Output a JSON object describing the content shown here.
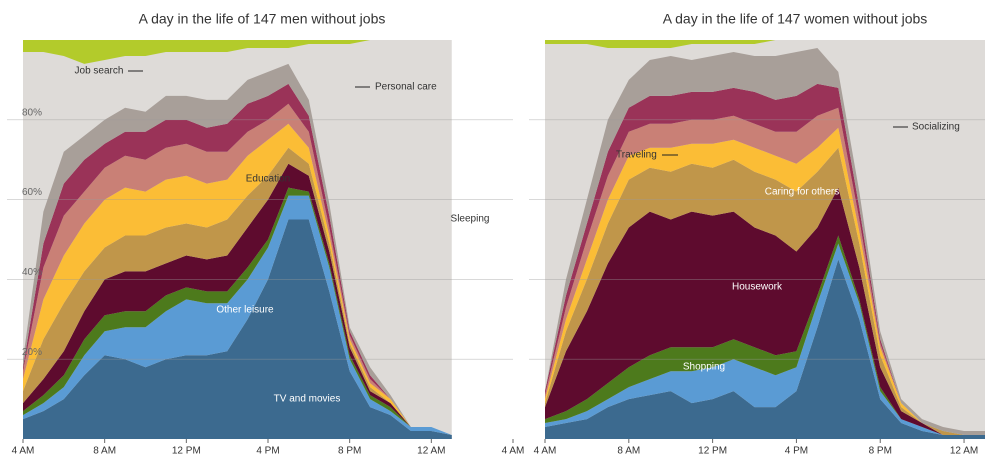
{
  "chart_data": [
    {
      "type": "area",
      "title": "A day in the life of 147 men without jobs",
      "x": [
        4,
        5,
        6,
        7,
        8,
        9,
        10,
        11,
        12,
        13,
        14,
        15,
        16,
        17,
        18,
        19,
        20,
        21,
        22,
        23,
        24,
        25
      ],
      "xlim": [
        4,
        28
      ],
      "xticks": [
        {
          "value": 4,
          "label": "4 AM"
        },
        {
          "value": 8,
          "label": "8 AM"
        },
        {
          "value": 12,
          "label": "12 PM"
        },
        {
          "value": 16,
          "label": "4 PM"
        },
        {
          "value": 20,
          "label": "8 PM"
        },
        {
          "value": 24,
          "label": "12 AM"
        },
        {
          "value": 28,
          "label": "4 AM"
        }
      ],
      "ylim": [
        0,
        100
      ],
      "yticks": [
        {
          "value": 20,
          "label": "20%"
        },
        {
          "value": 40,
          "label": "40%"
        },
        {
          "value": 60,
          "label": "60%"
        },
        {
          "value": 80,
          "label": "80%"
        }
      ],
      "show_ytick_labels": true,
      "background": "#dedbd8",
      "annotations": [
        {
          "text": "Sleeping"
        }
      ],
      "series": [
        {
          "name": "TV and movies",
          "color": "#3c6a8f",
          "values": [
            5,
            7,
            10,
            16,
            21,
            20,
            18,
            20,
            21,
            21,
            22,
            30,
            40,
            55,
            55,
            37,
            17,
            8,
            6,
            2,
            2,
            1
          ]
        },
        {
          "name": "Other leisure",
          "color": "#5a9bd4",
          "values": [
            1,
            2,
            3,
            5,
            6,
            8,
            10,
            12,
            14,
            13,
            12,
            10,
            8,
            6,
            6,
            6,
            3,
            2,
            1,
            1,
            1,
            0
          ]
        },
        {
          "color": "#4d7a1c",
          "values": [
            1,
            2,
            3,
            4,
            4,
            4,
            4,
            4,
            3,
            3,
            3,
            3,
            2,
            2,
            1,
            1,
            1,
            1,
            1,
            0,
            0,
            0
          ]
        },
        {
          "color": "#5e0b2e",
          "values": [
            2,
            4,
            6,
            7,
            9,
            10,
            10,
            8,
            8,
            8,
            9,
            10,
            10,
            6,
            4,
            3,
            2,
            1,
            1,
            0,
            0,
            0
          ]
        },
        {
          "color": "#c0964a",
          "values": [
            3,
            10,
            12,
            10,
            8,
            9,
            9,
            9,
            8,
            8,
            9,
            8,
            6,
            4,
            3,
            2,
            1,
            1,
            0,
            0,
            0,
            0
          ]
        },
        {
          "name": "Education",
          "color": "#fbbd36",
          "values": [
            3,
            10,
            12,
            12,
            12,
            12,
            11,
            12,
            12,
            11,
            10,
            10,
            9,
            6,
            4,
            2,
            1,
            1,
            1,
            0,
            0,
            0
          ]
        },
        {
          "color": "#c98076",
          "values": [
            2,
            8,
            10,
            8,
            8,
            8,
            8,
            8,
            8,
            8,
            7,
            6,
            5,
            5,
            4,
            2,
            1,
            1,
            0,
            0,
            0,
            0
          ]
        },
        {
          "color": "#9a3358",
          "values": [
            1,
            6,
            8,
            8,
            6,
            6,
            7,
            7,
            6,
            6,
            7,
            7,
            6,
            5,
            4,
            3,
            1,
            1,
            0,
            0,
            0,
            0
          ]
        },
        {
          "name": "Personal care",
          "color": "#a89f99",
          "values": [
            2,
            8,
            8,
            6,
            6,
            6,
            5,
            6,
            6,
            7,
            6,
            6,
            6,
            5,
            4,
            3,
            1,
            2,
            1,
            0,
            0,
            0
          ]
        },
        {
          "name": "Job search",
          "color": "#b3cb2b",
          "stack": "top",
          "values": [
            3,
            3,
            4,
            6,
            5,
            4,
            4,
            3,
            3,
            3,
            3,
            2,
            2,
            2,
            1,
            1,
            1,
            0,
            0,
            0,
            0,
            0
          ]
        }
      ]
    },
    {
      "type": "area",
      "title": "A day in the life of 147 women without jobs",
      "x": [
        4,
        5,
        6,
        7,
        8,
        9,
        10,
        11,
        12,
        13,
        14,
        15,
        16,
        17,
        18,
        19,
        20,
        21,
        22,
        23,
        24,
        25
      ],
      "xlim": [
        4,
        25
      ],
      "xticks": [
        {
          "value": 4,
          "label": "4 AM"
        },
        {
          "value": 8,
          "label": "8 AM"
        },
        {
          "value": 12,
          "label": "12 PM"
        },
        {
          "value": 16,
          "label": "4 PM"
        },
        {
          "value": 20,
          "label": "8 PM"
        },
        {
          "value": 24,
          "label": "12 AM"
        }
      ],
      "ylim": [
        0,
        100
      ],
      "yticks": [
        20,
        40,
        60,
        80
      ],
      "show_ytick_labels": false,
      "background": "#dedbd8",
      "series": [
        {
          "color": "#3c6a8f",
          "values": [
            3,
            4,
            5,
            8,
            10,
            11,
            12,
            9,
            10,
            12,
            8,
            8,
            12,
            28,
            45,
            30,
            10,
            4,
            2,
            1,
            1,
            1
          ]
        },
        {
          "name": "Shopping",
          "color": "#5a9bd4",
          "values": [
            1,
            1,
            2,
            2,
            3,
            4,
            5,
            8,
            8,
            8,
            10,
            8,
            6,
            6,
            4,
            4,
            2,
            1,
            1,
            0,
            0,
            0
          ]
        },
        {
          "color": "#4d7a1c",
          "values": [
            1,
            2,
            3,
            4,
            5,
            6,
            6,
            6,
            5,
            5,
            5,
            5,
            4,
            2,
            2,
            1,
            1,
            0,
            0,
            0,
            0,
            0
          ]
        },
        {
          "name": "Housework",
          "color": "#5e0b2e",
          "values": [
            3,
            15,
            22,
            30,
            35,
            36,
            32,
            34,
            33,
            32,
            30,
            30,
            25,
            17,
            12,
            8,
            5,
            2,
            1,
            0,
            0,
            0
          ]
        },
        {
          "name": "Caring for others",
          "color": "#c0964a",
          "values": [
            1,
            5,
            8,
            10,
            12,
            11,
            12,
            12,
            12,
            13,
            14,
            14,
            15,
            14,
            10,
            6,
            3,
            1,
            0,
            1,
            0,
            0
          ]
        },
        {
          "color": "#fbbd36",
          "values": [
            1,
            3,
            5,
            6,
            6,
            5,
            6,
            5,
            6,
            5,
            6,
            6,
            7,
            6,
            5,
            3,
            2,
            1,
            0,
            0,
            0,
            0
          ]
        },
        {
          "name": "Traveling",
          "color": "#c98076",
          "values": [
            1,
            3,
            5,
            6,
            6,
            6,
            6,
            6,
            6,
            6,
            6,
            6,
            8,
            8,
            5,
            3,
            1,
            0,
            0,
            0,
            0,
            0
          ]
        },
        {
          "color": "#9a3358",
          "values": [
            1,
            3,
            4,
            6,
            6,
            7,
            7,
            7,
            7,
            7,
            8,
            8,
            9,
            8,
            5,
            3,
            1,
            0,
            0,
            0,
            0,
            0
          ]
        },
        {
          "name": "Socializing",
          "color": "#a89f99",
          "values": [
            0,
            4,
            6,
            8,
            7,
            9,
            10,
            8,
            9,
            9,
            9,
            11,
            11,
            9,
            4,
            4,
            2,
            1,
            1,
            1,
            1,
            1
          ]
        },
        {
          "color": "#b3cb2b",
          "stack": "top",
          "values": [
            1,
            1,
            1,
            2,
            2,
            2,
            2,
            1,
            1,
            1,
            1,
            0,
            0,
            0,
            0,
            0,
            0,
            0,
            0,
            0,
            0,
            0
          ]
        }
      ]
    }
  ]
}
